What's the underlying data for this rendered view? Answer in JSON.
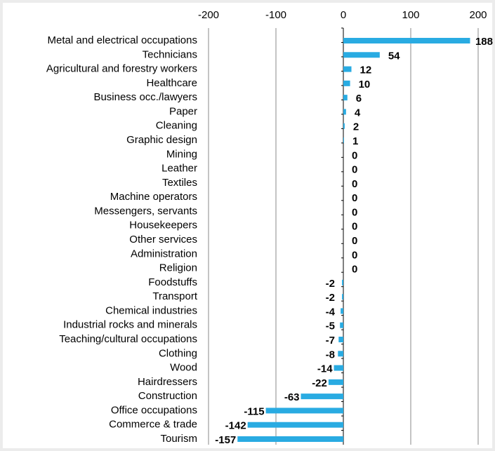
{
  "chart_data": {
    "type": "barh",
    "categories": [
      "Metal and electrical occupations",
      "Technicians",
      "Agricultural and forestry workers",
      "Healthcare",
      "Business occ./lawyers",
      "Paper",
      "Cleaning",
      "Graphic design",
      "Mining",
      "Leather",
      "Textiles",
      "Machine operators",
      "Messengers, servants",
      "Housekeepers",
      "Other services",
      "Administration",
      "Religion",
      "Foodstuffs",
      "Transport",
      "Chemical industries",
      "Industrial rocks and minerals",
      "Teaching/cultural occupations",
      "Clothing",
      "Wood",
      "Hairdressers",
      "Construction",
      "Office occupations",
      "Commerce & trade",
      "Tourism"
    ],
    "values": [
      188,
      54,
      12,
      10,
      6,
      4,
      2,
      1,
      0,
      0,
      0,
      0,
      0,
      0,
      0,
      0,
      0,
      -2,
      -2,
      -4,
      -5,
      -7,
      -8,
      -14,
      -22,
      -63,
      -115,
      -142,
      -157
    ],
    "color": "#29abe2",
    "xlim": [
      -200,
      200
    ],
    "xticks": [
      -200,
      -100,
      0,
      100,
      200
    ],
    "grid": true
  }
}
